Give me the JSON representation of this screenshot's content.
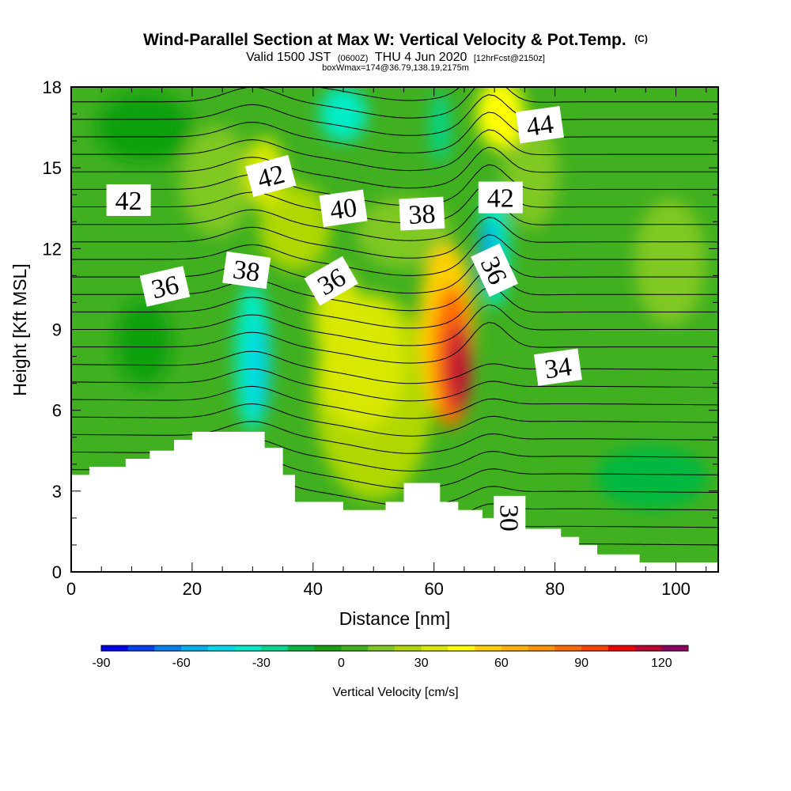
{
  "header": {
    "title": "Wind-Parallel Section at Max W: Vertical Velocity & Pot.Temp.",
    "title_mark": "(C)",
    "valid_prefix": "Valid 1500 JST",
    "valid_utc": "(0600Z)",
    "valid_date": "THU 4 Jun 2020",
    "forecast_info": "[12hrFcst@2150z]",
    "boxinfo": "boxWmax=174@36.79,138.19,2175m"
  },
  "chart_data": {
    "type": "heatmap",
    "xlabel": "Distance [nm]",
    "ylabel": "Height [Kft MSL]",
    "xlim": [
      0,
      107
    ],
    "ylim": [
      0,
      18
    ],
    "x_ticks": [
      "0",
      "20",
      "40",
      "60",
      "80",
      "100"
    ],
    "x_tick_values": [
      0,
      20,
      40,
      60,
      80,
      100
    ],
    "y_ticks": [
      "0",
      "3",
      "6",
      "9",
      "12",
      "15",
      "18"
    ],
    "y_tick_values": [
      0,
      3,
      6,
      9,
      12,
      15,
      18
    ],
    "colorbar": {
      "label": "Vertical Velocity [cm/s]",
      "min": -90,
      "max": 130,
      "step": 10,
      "tick_labels": [
        "-90",
        "-60",
        "-30",
        "0",
        "30",
        "60",
        "90",
        "120"
      ],
      "tick_values": [
        -90,
        -60,
        -30,
        0,
        30,
        60,
        90,
        120
      ],
      "colors": [
        "#0000f0",
        "#0040f0",
        "#0080f0",
        "#00b0f0",
        "#00d8e8",
        "#00ecc8",
        "#00d890",
        "#00b840",
        "#10a010",
        "#40b020",
        "#80c820",
        "#b0d800",
        "#d8e800",
        "#ffff00",
        "#ffd000",
        "#ffb000",
        "#ff9000",
        "#ff6800",
        "#ff4000",
        "#f00000",
        "#c00030",
        "#900060"
      ]
    },
    "field_features": [
      {
        "name": "updraft core",
        "x": 64,
        "y": 7.5,
        "w": 120
      },
      {
        "name": "broad updraft",
        "x": 50,
        "y": 8,
        "w": 35
      },
      {
        "name": "downdraft (west)",
        "x": 31,
        "y": 7.5,
        "w": -50
      },
      {
        "name": "downdraft (upper east)",
        "x": 70,
        "y": 12,
        "w": -55
      },
      {
        "name": "downdraft (upper)",
        "x": 45,
        "y": 16.5,
        "w": -40
      }
    ],
    "theta_contour_labels": [
      {
        "text": "42",
        "x": 9.5,
        "y": 13.8,
        "rot": 0
      },
      {
        "text": "42",
        "x": 33,
        "y": 14.7,
        "rot": -15
      },
      {
        "text": "40",
        "x": 45,
        "y": 13.5,
        "rot": -8
      },
      {
        "text": "38",
        "x": 58,
        "y": 13.3,
        "rot": -3
      },
      {
        "text": "42",
        "x": 71,
        "y": 13.9,
        "rot": 0
      },
      {
        "text": "44",
        "x": 77.5,
        "y": 16.6,
        "rot": -8
      },
      {
        "text": "36",
        "x": 15.5,
        "y": 10.6,
        "rot": -13
      },
      {
        "text": "38",
        "x": 29,
        "y": 11.2,
        "rot": 8
      },
      {
        "text": "36",
        "x": 43,
        "y": 10.8,
        "rot": -30
      },
      {
        "text": "36",
        "x": 70,
        "y": 11.2,
        "rot": 65
      },
      {
        "text": "34",
        "x": 80.5,
        "y": 7.6,
        "rot": -8
      },
      {
        "text": "30",
        "x": 72.5,
        "y": 2.0,
        "rot": 90
      }
    ],
    "terrain_profile": [
      [
        0,
        3.6
      ],
      [
        3,
        3.6
      ],
      [
        3,
        3.9
      ],
      [
        9,
        3.9
      ],
      [
        9,
        4.2
      ],
      [
        13,
        4.2
      ],
      [
        13,
        4.5
      ],
      [
        17,
        4.5
      ],
      [
        17,
        4.9
      ],
      [
        20,
        4.9
      ],
      [
        20,
        5.2
      ],
      [
        32,
        5.2
      ],
      [
        32,
        4.6
      ],
      [
        35,
        4.6
      ],
      [
        35,
        3.6
      ],
      [
        37,
        3.6
      ],
      [
        37,
        2.6
      ],
      [
        45,
        2.6
      ],
      [
        45,
        2.3
      ],
      [
        52,
        2.3
      ],
      [
        52,
        2.6
      ],
      [
        55,
        2.6
      ],
      [
        55,
        3.3
      ],
      [
        61,
        3.3
      ],
      [
        61,
        2.6
      ],
      [
        64,
        2.6
      ],
      [
        64,
        2.3
      ],
      [
        68,
        2.3
      ],
      [
        68,
        2.0
      ],
      [
        73,
        2.0
      ],
      [
        73,
        1.6
      ],
      [
        81,
        1.6
      ],
      [
        81,
        1.3
      ],
      [
        84,
        1.3
      ],
      [
        84,
        1.0
      ],
      [
        87,
        1.0
      ],
      [
        87,
        0.65
      ],
      [
        94,
        0.65
      ],
      [
        94,
        0.35
      ],
      [
        107,
        0.35
      ]
    ]
  }
}
